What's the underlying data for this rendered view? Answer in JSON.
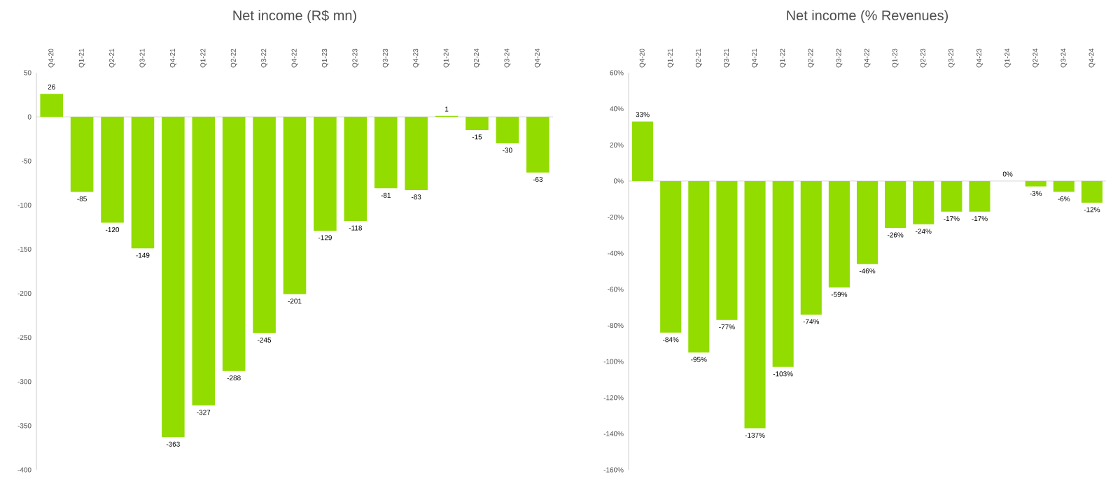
{
  "chart_data": [
    {
      "type": "bar",
      "title": "Net income (R$ mn)",
      "categories": [
        "Q4-20",
        "Q1-21",
        "Q2-21",
        "Q3-21",
        "Q4-21",
        "Q1-22",
        "Q2-22",
        "Q3-22",
        "Q4-22",
        "Q1-23",
        "Q2-23",
        "Q3-23",
        "Q4-23",
        "Q1-24",
        "Q2-24",
        "Q3-24",
        "Q4-24"
      ],
      "values": [
        26,
        -85,
        -120,
        -149,
        -363,
        -327,
        -288,
        -245,
        -201,
        -129,
        -118,
        -81,
        -83,
        1,
        -15,
        -30,
        -63
      ],
      "color": "#92dc00",
      "ylim": [
        -400,
        50
      ],
      "yticks": [
        -400,
        -350,
        -300,
        -250,
        -200,
        -150,
        -100,
        -50,
        0,
        50
      ],
      "data_labels": true
    },
    {
      "type": "bar",
      "title": "Net income (% Revenues)",
      "categories": [
        "Q4-20",
        "Q1-21",
        "Q2-21",
        "Q3-21",
        "Q4-21",
        "Q1-22",
        "Q2-22",
        "Q3-22",
        "Q4-22",
        "Q1-23",
        "Q2-23",
        "Q3-23",
        "Q4-23",
        "Q1-24",
        "Q2-24",
        "Q3-24",
        "Q4-24"
      ],
      "values": [
        33,
        -84,
        -95,
        -77,
        -137,
        -103,
        -74,
        -59,
        -46,
        -26,
        -24,
        -17,
        -17,
        0,
        -3,
        -6,
        -12
      ],
      "value_labels": [
        "33%",
        "-84%",
        "-95%",
        "-77%",
        "-137%",
        "-103%",
        "-74%",
        "-59%",
        "-46%",
        "-26%",
        "-24%",
        "-17%",
        "-17%",
        "0%",
        "-3%",
        "-6%",
        "-12%"
      ],
      "color": "#92dc00",
      "ylim": [
        -160,
        60
      ],
      "yticks": [
        {
          "value": -160,
          "label": "-160%"
        },
        {
          "value": -140,
          "label": "-140%"
        },
        {
          "value": -120,
          "label": "-120%"
        },
        {
          "value": -100,
          "label": "-100%"
        },
        {
          "value": -80,
          "label": "-80%"
        },
        {
          "value": -60,
          "label": "-60%"
        },
        {
          "value": -40,
          "label": "-40%"
        },
        {
          "value": -20,
          "label": "-20%"
        },
        {
          "value": 0,
          "label": "0%"
        },
        {
          "value": 20,
          "label": "20%"
        },
        {
          "value": 40,
          "label": "40%"
        },
        {
          "value": 60,
          "label": "60%"
        }
      ]
    }
  ]
}
